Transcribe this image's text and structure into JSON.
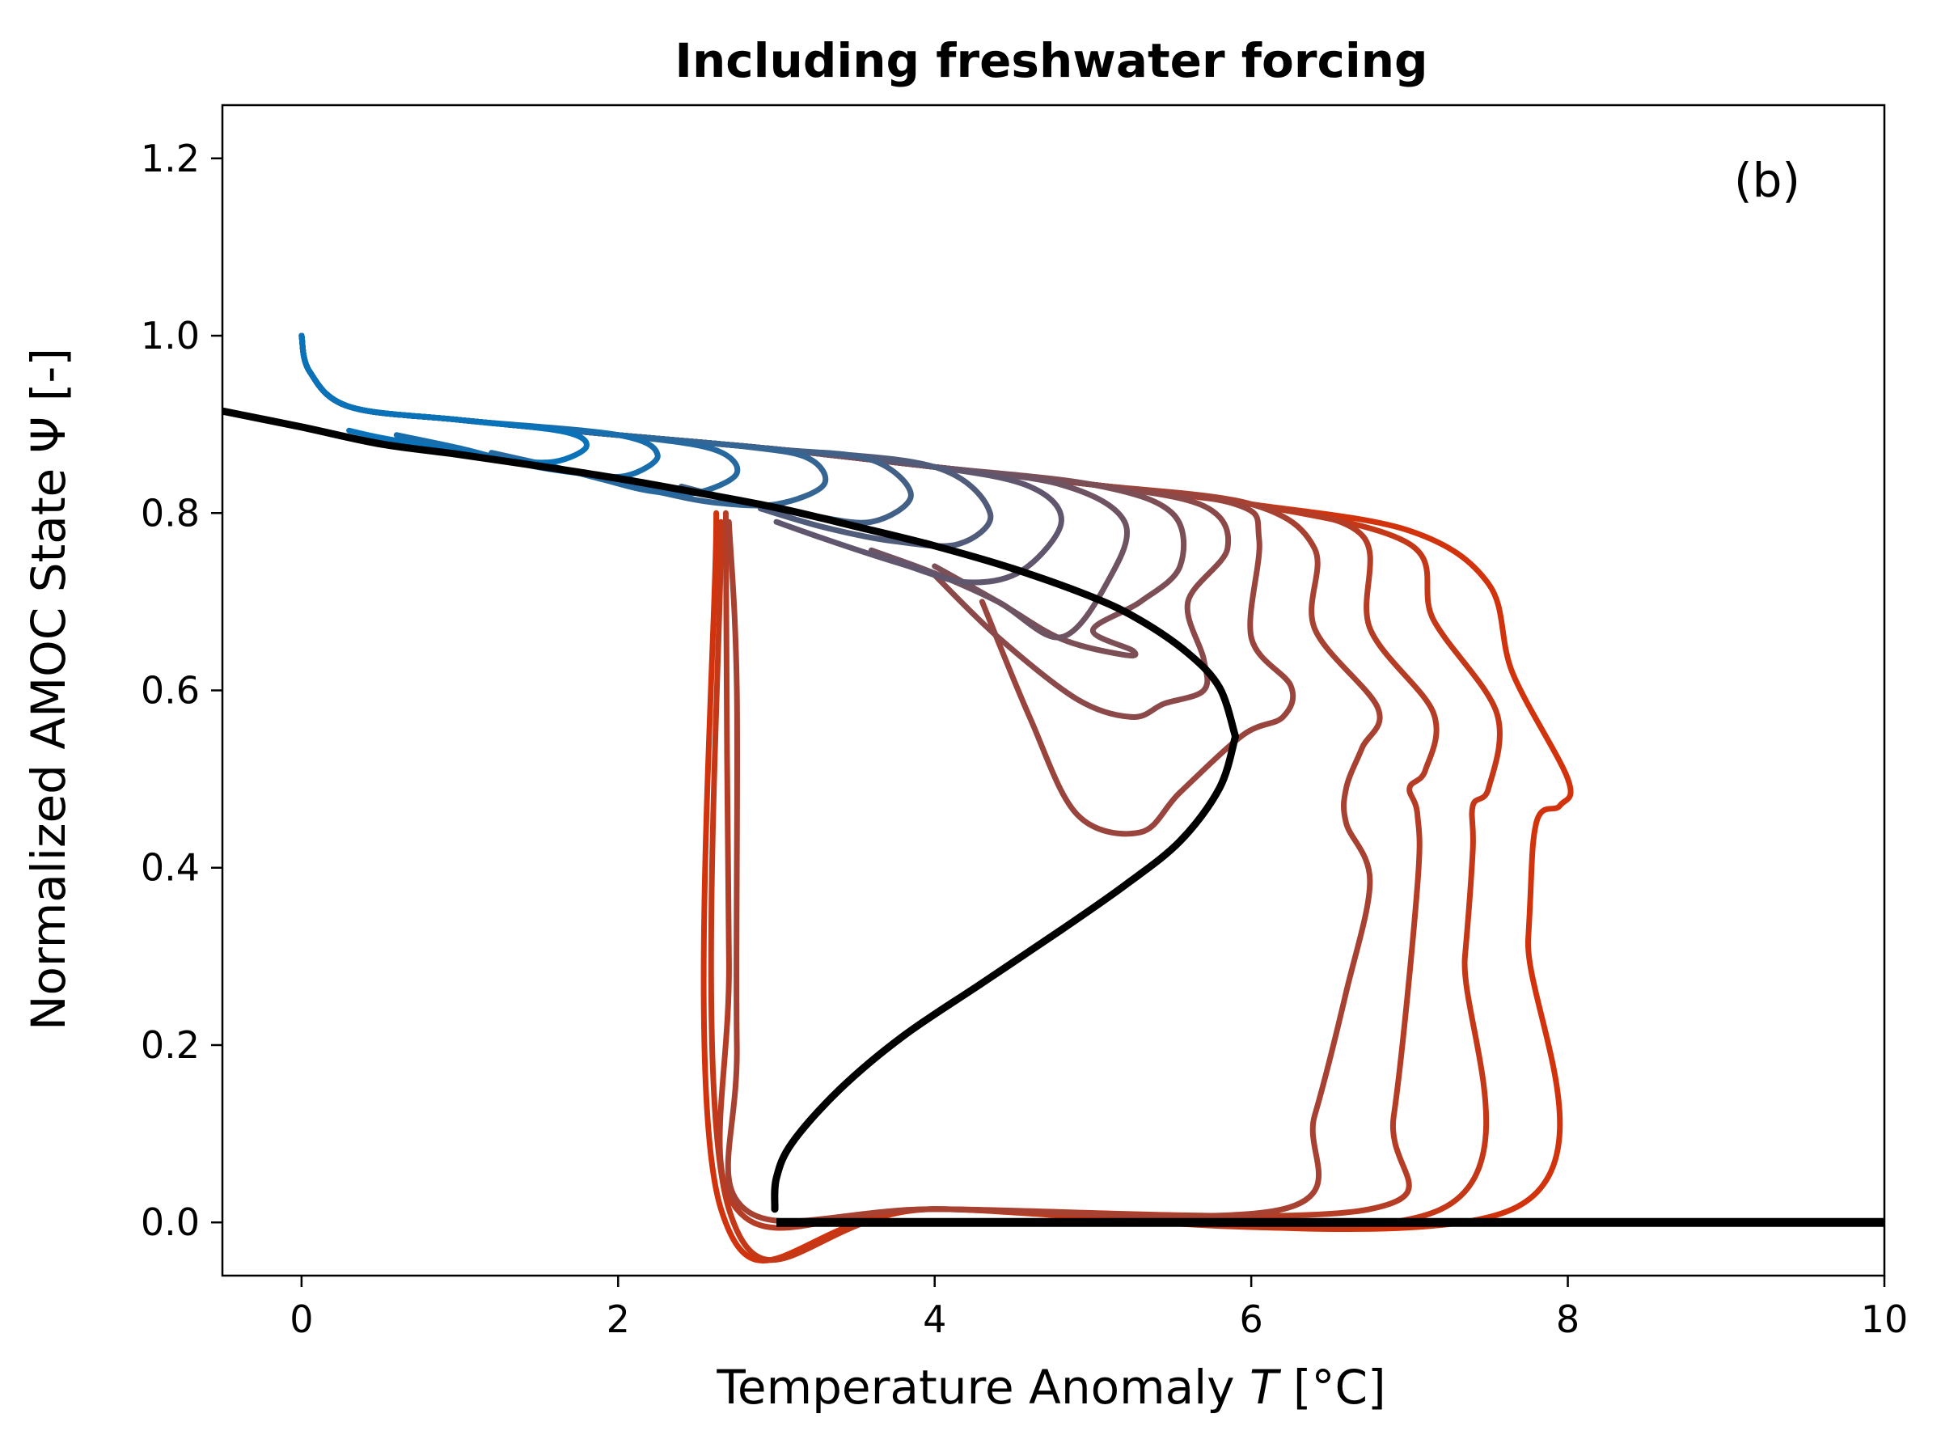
{
  "chart_data": {
    "type": "line",
    "title": "Including freshwater forcing",
    "xlabel_prefix": "Temperature Anomaly ",
    "xlabel_symbol": "T",
    "xlabel_unit": " [°C]",
    "ylabel": "Normalized AMOC State Ψ [-]",
    "panel_label": "(b)",
    "xlim": [
      -0.5,
      10
    ],
    "ylim": [
      -0.06,
      1.26
    ],
    "xticks": [
      0,
      2,
      4,
      6,
      8,
      10
    ],
    "yticks": [
      0.0,
      0.2,
      0.4,
      0.6,
      0.8,
      1.0,
      1.2
    ],
    "xtick_labels": [
      "0",
      "2",
      "4",
      "6",
      "8",
      "10"
    ],
    "ytick_labels": [
      "0.0",
      "0.2",
      "0.4",
      "0.6",
      "0.8",
      "1.0",
      "1.2"
    ],
    "grid": false,
    "colors": {
      "equilibrium": "#000000",
      "start": "#0a72b8",
      "end": "#d2330c"
    },
    "equilibrium_upper": {
      "x": [
        -0.5,
        0.0,
        0.5,
        1.0,
        1.5,
        2.0,
        2.5,
        3.0,
        3.5,
        4.0,
        4.5,
        5.0,
        5.3,
        5.6,
        5.8,
        5.9
      ],
      "y": [
        0.915,
        0.897,
        0.878,
        0.866,
        0.853,
        0.839,
        0.823,
        0.806,
        0.785,
        0.763,
        0.737,
        0.705,
        0.679,
        0.642,
        0.603,
        0.548
      ]
    },
    "equilibrium_middle": {
      "x": [
        5.9,
        5.8,
        5.55,
        5.2,
        4.8,
        4.3,
        3.8,
        3.4,
        3.1,
        3.0,
        2.99
      ],
      "y": [
        0.548,
        0.49,
        0.43,
        0.38,
        0.33,
        0.27,
        0.21,
        0.15,
        0.09,
        0.05,
        0.015
      ]
    },
    "equilibrium_lower": {
      "x": [
        3.0,
        10.0
      ],
      "y": [
        0.0,
        0.0
      ]
    },
    "trajectories": [
      {
        "x": [
          0.0,
          0.05,
          0.3,
          1.0,
          1.65,
          1.8,
          1.6,
          1.3,
          0.9,
          0.5,
          0.3
        ],
        "y": [
          1.0,
          0.96,
          0.92,
          0.905,
          0.892,
          0.875,
          0.858,
          0.86,
          0.872,
          0.885,
          0.893
        ]
      },
      {
        "x": [
          0.0,
          0.05,
          0.3,
          1.0,
          2.0,
          2.25,
          2.05,
          1.75,
          1.4,
          1.0,
          0.6
        ],
        "y": [
          1.0,
          0.96,
          0.92,
          0.905,
          0.888,
          0.865,
          0.842,
          0.845,
          0.855,
          0.873,
          0.888
        ]
      },
      {
        "x": [
          0.0,
          0.05,
          0.3,
          1.0,
          2.0,
          2.6,
          2.75,
          2.5,
          2.2,
          1.9,
          1.6,
          1.2
        ],
        "y": [
          1.0,
          0.96,
          0.92,
          0.905,
          0.888,
          0.872,
          0.845,
          0.823,
          0.825,
          0.838,
          0.852,
          0.868
        ]
      },
      {
        "x": [
          0.0,
          0.05,
          0.3,
          1.0,
          2.0,
          2.8,
          3.2,
          3.3,
          3.0,
          2.6,
          2.2,
          1.8
        ],
        "y": [
          1.0,
          0.96,
          0.92,
          0.905,
          0.888,
          0.875,
          0.862,
          0.832,
          0.81,
          0.812,
          0.826,
          0.843
        ]
      },
      {
        "x": [
          0.0,
          0.05,
          0.3,
          1.0,
          2.0,
          3.0,
          3.6,
          3.85,
          3.6,
          3.2,
          2.8,
          2.4
        ],
        "y": [
          1.0,
          0.96,
          0.92,
          0.905,
          0.888,
          0.872,
          0.86,
          0.82,
          0.79,
          0.798,
          0.812,
          0.83
        ]
      },
      {
        "x": [
          0.0,
          0.05,
          0.3,
          1.0,
          2.0,
          3.0,
          4.0,
          4.35,
          4.15,
          3.75,
          3.3,
          2.9
        ],
        "y": [
          1.0,
          0.96,
          0.92,
          0.905,
          0.888,
          0.872,
          0.852,
          0.8,
          0.765,
          0.768,
          0.784,
          0.805
        ]
      },
      {
        "x": [
          0.0,
          0.05,
          0.3,
          1.0,
          2.0,
          3.0,
          4.0,
          4.6,
          4.8,
          4.55,
          4.2,
          3.8,
          3.4,
          3.0
        ],
        "y": [
          1.0,
          0.96,
          0.92,
          0.905,
          0.888,
          0.872,
          0.852,
          0.83,
          0.79,
          0.735,
          0.722,
          0.742,
          0.765,
          0.79
        ]
      },
      {
        "x": [
          0.0,
          0.05,
          0.3,
          1.0,
          2.0,
          3.0,
          4.0,
          4.8,
          5.2,
          5.1,
          4.8,
          4.4,
          4.0,
          3.6
        ],
        "y": [
          1.0,
          0.96,
          0.92,
          0.905,
          0.888,
          0.872,
          0.852,
          0.832,
          0.79,
          0.725,
          0.66,
          0.7,
          0.732,
          0.758
        ]
      },
      {
        "x": [
          0.0,
          0.05,
          0.3,
          1.0,
          2.0,
          3.0,
          4.0,
          5.0,
          5.5,
          5.55,
          5.3,
          5.0,
          5.25,
          5.2,
          4.8,
          4.4,
          4.0
        ],
        "y": [
          1.0,
          0.96,
          0.92,
          0.905,
          0.888,
          0.872,
          0.852,
          0.832,
          0.8,
          0.74,
          0.7,
          0.668,
          0.645,
          0.64,
          0.658,
          0.7,
          0.74
        ]
      },
      {
        "x": [
          0.0,
          0.05,
          0.3,
          1.0,
          2.0,
          3.0,
          4.0,
          5.0,
          5.7,
          5.85,
          5.6,
          5.7,
          5.7,
          5.45,
          5.25,
          4.9,
          4.4,
          4.0
        ],
        "y": [
          1.0,
          0.96,
          0.92,
          0.905,
          0.888,
          0.872,
          0.852,
          0.832,
          0.808,
          0.76,
          0.7,
          0.635,
          0.6,
          0.585,
          0.57,
          0.59,
          0.66,
          0.73
        ]
      },
      {
        "x": [
          0.0,
          0.05,
          0.3,
          1.0,
          2.0,
          3.0,
          4.0,
          5.0,
          5.9,
          6.05,
          6.0,
          6.25,
          6.2,
          5.95,
          5.55,
          5.3,
          4.9,
          4.6,
          4.3
        ],
        "y": [
          1.0,
          0.96,
          0.92,
          0.905,
          0.888,
          0.872,
          0.852,
          0.832,
          0.81,
          0.77,
          0.66,
          0.605,
          0.57,
          0.55,
          0.485,
          0.44,
          0.46,
          0.57,
          0.7
        ]
      },
      {
        "x": [
          0.0,
          0.05,
          0.3,
          1.0,
          2.0,
          3.0,
          4.0,
          5.0,
          6.0,
          6.4,
          6.4,
          6.8,
          6.7,
          6.6,
          6.6,
          6.75,
          6.6,
          6.4,
          6.2,
          4.0,
          2.8,
          2.75,
          2.75,
          2.7
        ],
        "y": [
          1.0,
          0.96,
          0.92,
          0.905,
          0.888,
          0.872,
          0.852,
          0.832,
          0.81,
          0.76,
          0.67,
          0.58,
          0.535,
          0.49,
          0.45,
          0.385,
          0.26,
          0.12,
          0.015,
          0.015,
          0.015,
          0.2,
          0.6,
          0.79
        ]
      },
      {
        "x": [
          0.0,
          0.05,
          0.3,
          1.0,
          2.0,
          3.0,
          4.0,
          5.0,
          6.0,
          6.7,
          6.75,
          7.15,
          7.1,
          7.0,
          7.05,
          7.05,
          6.9,
          6.75,
          4.0,
          2.75,
          2.7,
          2.68
        ],
        "y": [
          1.0,
          0.96,
          0.92,
          0.905,
          0.888,
          0.872,
          0.852,
          0.832,
          0.81,
          0.775,
          0.67,
          0.575,
          0.51,
          0.49,
          0.46,
          0.38,
          0.12,
          0.015,
          0.015,
          0.015,
          0.3,
          0.8
        ]
      },
      {
        "x": [
          0.0,
          0.05,
          0.3,
          1.0,
          2.0,
          3.0,
          4.0,
          5.0,
          6.0,
          7.0,
          7.15,
          7.55,
          7.5,
          7.4,
          7.4,
          7.35,
          7.2,
          4.0,
          2.7,
          2.65
        ],
        "y": [
          1.0,
          0.96,
          0.92,
          0.905,
          0.888,
          0.872,
          0.852,
          0.832,
          0.81,
          0.765,
          0.68,
          0.575,
          0.49,
          0.47,
          0.42,
          0.3,
          0.015,
          0.015,
          0.015,
          0.79
        ]
      },
      {
        "x": [
          0.0,
          0.05,
          0.3,
          1.0,
          2.0,
          3.0,
          4.0,
          5.0,
          6.0,
          7.0,
          7.5,
          7.65,
          8.0,
          7.95,
          7.8,
          7.75,
          7.65,
          4.0,
          2.65,
          2.62
        ],
        "y": [
          1.0,
          0.96,
          0.92,
          0.905,
          0.888,
          0.872,
          0.852,
          0.832,
          0.81,
          0.78,
          0.72,
          0.62,
          0.5,
          0.47,
          0.45,
          0.32,
          0.015,
          0.015,
          0.015,
          0.8
        ]
      }
    ]
  }
}
